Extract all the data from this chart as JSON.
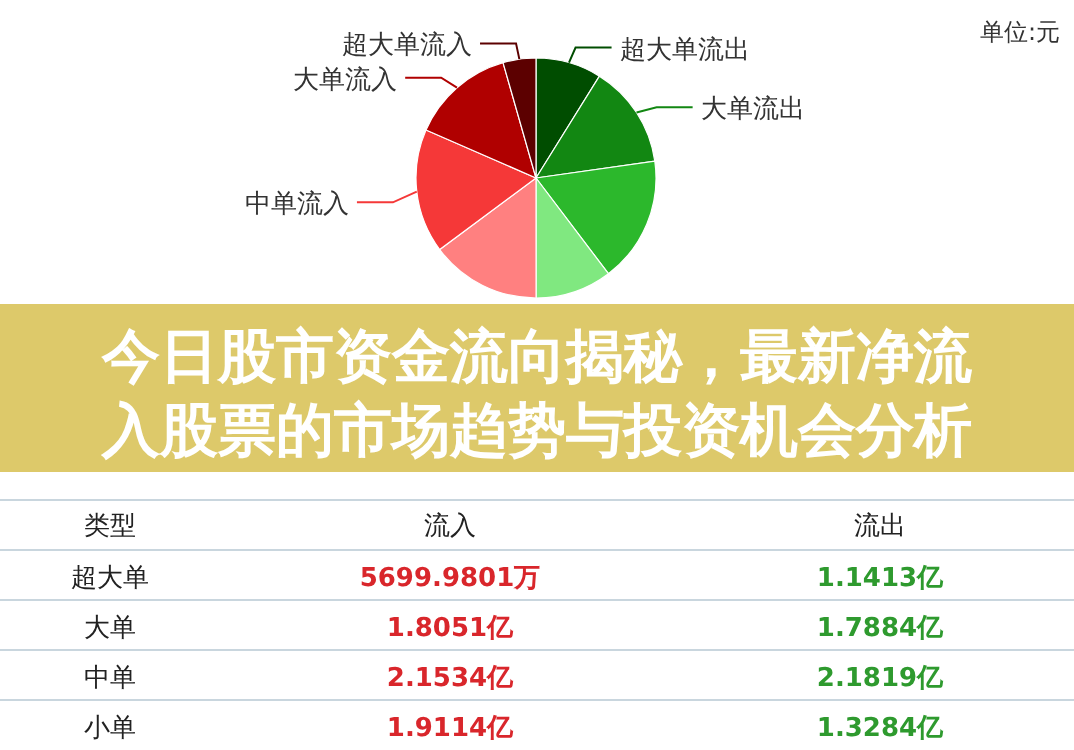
{
  "chart_data": [
    {
      "type": "pie",
      "title": "今日股市资金流向揭秘，最新净流入股票的市场趋势与投资机会分析",
      "annotations": [
        "单位:元"
      ],
      "categories": [
        "超大单流出",
        "大单流出",
        null,
        null,
        null,
        "中单流入",
        "大单流入",
        "超大单流入"
      ],
      "values": [
        8.86,
        13.89,
        16.94,
        10.3,
        14.84,
        16.72,
        14.02,
        4.43
      ],
      "colors": [
        "#004d00",
        "#128712",
        "#2cb82c",
        "#80e880",
        "#ff8080",
        "#f53838",
        "#b00000",
        "#5c0000"
      ]
    },
    {
      "type": "heatmap",
      "ylabel": "类型",
      "categories": [
        "流入",
        "流出"
      ],
      "y_categories": [
        "超大单",
        "大单",
        "中单",
        "小单"
      ],
      "cells": [
        [
          null,
          null
        ],
        [
          null,
          null
        ],
        [
          null,
          null
        ],
        [
          null,
          null
        ]
      ],
      "cell_labels": [
        [
          "5699.9801万",
          "1.1413亿"
        ],
        [
          "1.8051亿",
          "1.7884亿"
        ],
        [
          "2.1534亿",
          "2.1819亿"
        ],
        [
          "1.9114亿",
          "1.3284亿"
        ]
      ]
    }
  ]
}
